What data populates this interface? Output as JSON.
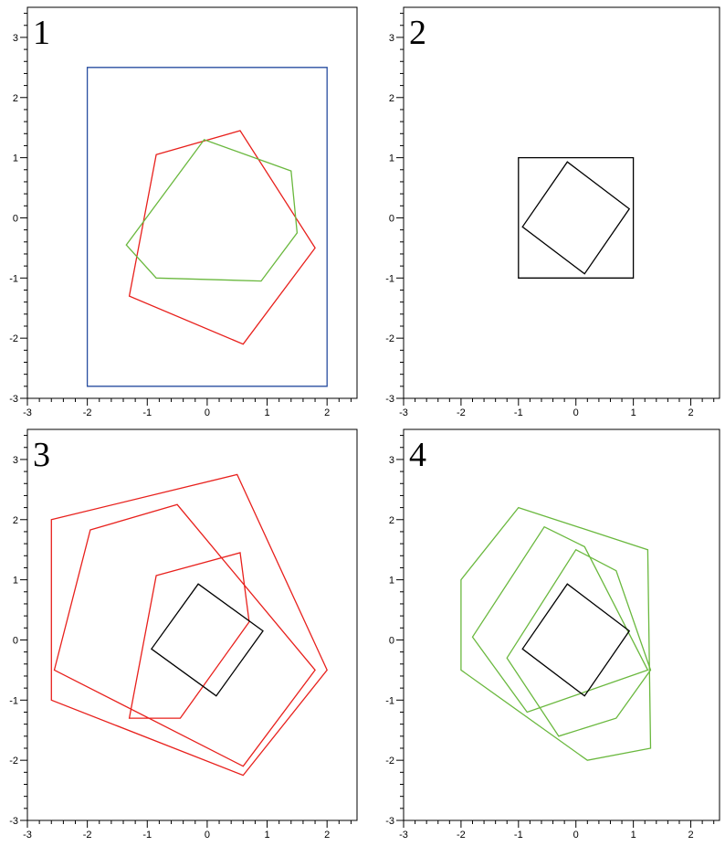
{
  "colors": {
    "red": "#e8201c",
    "green": "#6ab83e",
    "blue": "#284ea0",
    "black": "#000000"
  },
  "axes": {
    "x_range": [
      -3,
      2.5
    ],
    "y_range": [
      -3,
      3.5
    ],
    "x_ticks": [
      -3,
      -2,
      -1,
      0,
      1,
      2
    ],
    "y_ticks": [
      -3,
      -2,
      -1,
      0,
      1,
      2,
      3
    ],
    "x_tick_labels": [
      "-3",
      "-2",
      "-1",
      "0",
      "1",
      "2"
    ],
    "y_tick_labels": [
      "-3",
      "-2",
      "-1",
      "0",
      "1",
      "2",
      "3"
    ],
    "minor_step": 0.2
  },
  "panels": [
    {
      "label": "1",
      "shapes": [
        {
          "kind": "rectangle",
          "color": "blue",
          "points": [
            [
              -2,
              2.5
            ],
            [
              2,
              2.5
            ],
            [
              2,
              -2.8
            ],
            [
              -2,
              -2.8
            ]
          ]
        },
        {
          "kind": "pentagon",
          "color": "red",
          "points": [
            [
              -0.85,
              1.05
            ],
            [
              0.55,
              1.45
            ],
            [
              1.8,
              -0.5
            ],
            [
              0.6,
              -2.1
            ],
            [
              -1.3,
              -1.3
            ]
          ]
        },
        {
          "kind": "hexagon",
          "color": "green",
          "points": [
            [
              -0.05,
              1.3
            ],
            [
              1.4,
              0.78
            ],
            [
              1.5,
              -0.25
            ],
            [
              0.9,
              -1.05
            ],
            [
              -0.85,
              -1.0
            ],
            [
              -1.35,
              -0.45
            ]
          ]
        }
      ]
    },
    {
      "label": "2",
      "shapes": [
        {
          "kind": "square",
          "color": "black",
          "points": [
            [
              -1,
              1
            ],
            [
              1,
              1
            ],
            [
              1,
              -1
            ],
            [
              -1,
              -1
            ]
          ]
        },
        {
          "kind": "rotated-square",
          "color": "black",
          "points": [
            [
              -0.15,
              0.93
            ],
            [
              0.93,
              0.15
            ],
            [
              0.15,
              -0.93
            ],
            [
              -0.93,
              -0.15
            ]
          ]
        }
      ]
    },
    {
      "label": "3",
      "shapes": [
        {
          "kind": "pentagon",
          "color": "red",
          "points": [
            [
              -2.6,
              2.0
            ],
            [
              0.5,
              2.75
            ],
            [
              2.0,
              -0.5
            ],
            [
              0.6,
              -2.25
            ],
            [
              -2.6,
              -1.0
            ]
          ]
        },
        {
          "kind": "pentagon",
          "color": "red",
          "points": [
            [
              -1.95,
              1.83
            ],
            [
              -0.5,
              2.25
            ],
            [
              1.8,
              -0.5
            ],
            [
              0.6,
              -2.1
            ],
            [
              -2.55,
              -0.5
            ]
          ]
        },
        {
          "kind": "pentagon",
          "color": "red",
          "points": [
            [
              -0.85,
              1.07
            ],
            [
              0.55,
              1.45
            ],
            [
              0.7,
              0.3
            ],
            [
              -0.45,
              -1.3
            ],
            [
              -1.3,
              -1.3
            ]
          ]
        },
        {
          "kind": "rotated-square",
          "color": "black",
          "points": [
            [
              -0.15,
              0.93
            ],
            [
              0.93,
              0.15
            ],
            [
              0.15,
              -0.93
            ],
            [
              -0.93,
              -0.15
            ]
          ]
        }
      ]
    },
    {
      "label": "4",
      "shapes": [
        {
          "kind": "hexagon",
          "color": "green",
          "points": [
            [
              -1.0,
              2.2
            ],
            [
              1.25,
              1.5
            ],
            [
              1.3,
              -1.8
            ],
            [
              0.2,
              -2.0
            ],
            [
              -2.0,
              -0.5
            ],
            [
              -2.0,
              1.0
            ]
          ]
        },
        {
          "kind": "hexagon",
          "color": "green",
          "points": [
            [
              -0.55,
              1.88
            ],
            [
              0.15,
              1.55
            ],
            [
              1.25,
              -0.5
            ],
            [
              -0.85,
              -1.2
            ],
            [
              -1.8,
              0.05
            ],
            [
              -0.55,
              1.88
            ]
          ]
        },
        {
          "kind": "hexagon",
          "color": "green",
          "points": [
            [
              0.0,
              1.5
            ],
            [
              0.7,
              1.15
            ],
            [
              1.3,
              -0.5
            ],
            [
              0.7,
              -1.3
            ],
            [
              -0.3,
              -1.6
            ],
            [
              -1.2,
              -0.3
            ]
          ]
        },
        {
          "kind": "rotated-square",
          "color": "black",
          "points": [
            [
              -0.15,
              0.93
            ],
            [
              0.93,
              0.15
            ],
            [
              0.15,
              -0.93
            ],
            [
              -0.93,
              -0.15
            ]
          ]
        }
      ]
    }
  ]
}
